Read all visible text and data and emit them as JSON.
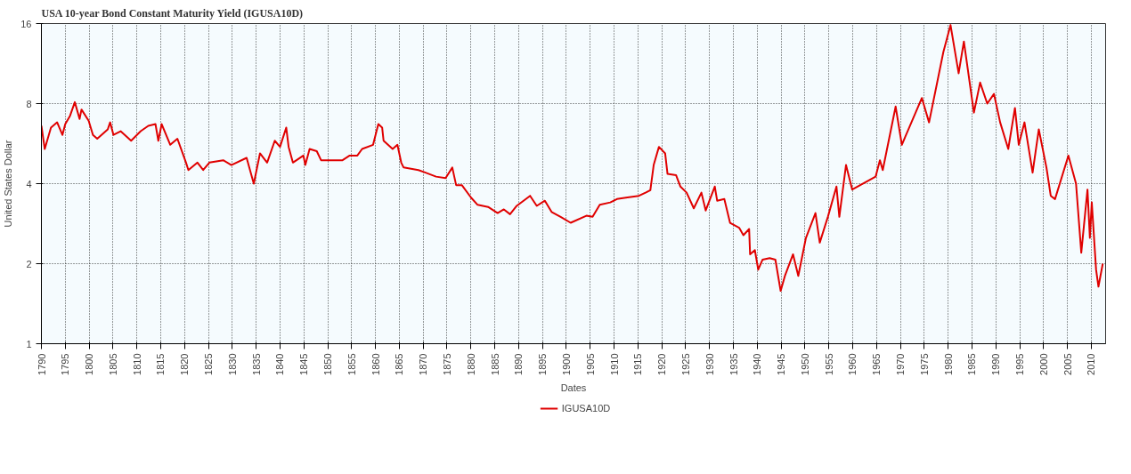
{
  "chart_data": {
    "type": "line",
    "title": "USA 10-year Bond Constant Maturity Yield (IGUSA10D)",
    "xlabel": "Dates",
    "ylabel": "United States Dollar",
    "log": "y",
    "grid": true,
    "legend": "bottom",
    "xlim": [
      1790,
      2013
    ],
    "xticks": [
      1790,
      1795,
      1800,
      1805,
      1810,
      1815,
      1820,
      1825,
      1830,
      1835,
      1840,
      1845,
      1850,
      1855,
      1860,
      1865,
      1870,
      1875,
      1880,
      1885,
      1890,
      1895,
      1900,
      1905,
      1910,
      1915,
      1920,
      1925,
      1930,
      1935,
      1940,
      1945,
      1950,
      1955,
      1960,
      1965,
      1970,
      1975,
      1980,
      1985,
      1990,
      1995,
      2000,
      2005,
      2010
    ],
    "ylim": [
      1,
      16
    ],
    "yticks": [
      1,
      2,
      4,
      8,
      16
    ],
    "series": [
      {
        "name": "IGUSA10D",
        "color": "#e00000",
        "x": [
          1790,
          1790.7,
          1792,
          1793.3,
          1794.4,
          1795,
          1796,
          1797,
          1798,
          1798.4,
          1799.9,
          1800.8,
          1801.7,
          1803.9,
          1804.4,
          1805.1,
          1806.6,
          1808.8,
          1810.8,
          1812.4,
          1813.9,
          1814.5,
          1815.2,
          1817,
          1818.5,
          1820.3,
          1820.8,
          1822.7,
          1823.9,
          1825.2,
          1828.1,
          1829.8,
          1833,
          1834.5,
          1835.8,
          1837.3,
          1838.9,
          1840,
          1841.3,
          1841.8,
          1842.7,
          1844.9,
          1845.3,
          1846.2,
          1847.7,
          1848.6,
          1853.1,
          1854.6,
          1856.2,
          1857.2,
          1859.5,
          1860.6,
          1861.4,
          1861.7,
          1863.6,
          1864.6,
          1865.4,
          1865.9,
          1869,
          1870.5,
          1872.7,
          1874.7,
          1876.1,
          1876.9,
          1878.1,
          1880,
          1881.4,
          1883.6,
          1885.6,
          1886.9,
          1888.2,
          1889.6,
          1892.4,
          1893.8,
          1895.5,
          1896.9,
          1898.8,
          1900.9,
          1904.2,
          1905.5,
          1907,
          1909.2,
          1910.6,
          1912.8,
          1915.2,
          1916.6,
          1917.6,
          1918.3,
          1919.4,
          1920.7,
          1921.2,
          1923,
          1923.9,
          1925.2,
          1926.7,
          1928.3,
          1929.2,
          1931.1,
          1931.6,
          1933.1,
          1934.3,
          1936.2,
          1937.1,
          1938.3,
          1938.5,
          1939.5,
          1940.2,
          1941.1,
          1942.6,
          1943.8,
          1944.9,
          1945.8,
          1947.5,
          1948.6,
          1950.2,
          1952.2,
          1953.1,
          1954.8,
          1956.6,
          1957.2,
          1958.6,
          1959.9,
          1964.8,
          1965.7,
          1966.3,
          1969,
          1970.3,
          1974.5,
          1976,
          1979,
          1980.5,
          1982.2,
          1983.3,
          1985.4,
          1986.7,
          1988.2,
          1989.6,
          1990.9,
          1992.6,
          1994,
          1994.8,
          1996,
          1997.7,
          1999,
          2000.6,
          2001.5,
          2002.4,
          2005.2,
          2006.8,
          2007.9,
          2009.2,
          2009.7,
          2010.1,
          2011,
          2011.5,
          2012.4
        ],
        "values": [
          6.6,
          5.4,
          6.5,
          6.8,
          6.1,
          6.7,
          7.2,
          8.1,
          7.0,
          7.6,
          6.9,
          6.1,
          5.9,
          6.4,
          6.8,
          6.1,
          6.3,
          5.8,
          6.3,
          6.6,
          6.7,
          5.8,
          6.7,
          5.6,
          5.9,
          4.8,
          4.5,
          4.8,
          4.5,
          4.8,
          4.9,
          4.7,
          5.0,
          4.0,
          5.2,
          4.8,
          5.8,
          5.5,
          6.5,
          5.5,
          4.8,
          5.1,
          4.7,
          5.4,
          5.3,
          4.9,
          4.9,
          5.1,
          5.1,
          5.4,
          5.6,
          6.7,
          6.5,
          5.8,
          5.4,
          5.6,
          4.8,
          4.6,
          4.5,
          4.4,
          4.25,
          4.2,
          4.6,
          3.95,
          3.95,
          3.55,
          3.33,
          3.27,
          3.1,
          3.2,
          3.07,
          3.3,
          3.6,
          3.3,
          3.45,
          3.13,
          3.0,
          2.85,
          3.03,
          3.0,
          3.33,
          3.4,
          3.5,
          3.55,
          3.6,
          3.7,
          3.78,
          4.7,
          5.5,
          5.2,
          4.35,
          4.3,
          3.9,
          3.7,
          3.23,
          3.7,
          3.17,
          3.9,
          3.45,
          3.5,
          2.85,
          2.73,
          2.56,
          2.7,
          2.17,
          2.25,
          1.9,
          2.07,
          2.1,
          2.07,
          1.58,
          1.8,
          2.17,
          1.8,
          2.5,
          3.1,
          2.4,
          3.0,
          3.9,
          3.0,
          4.7,
          3.8,
          4.25,
          4.9,
          4.5,
          7.8,
          5.6,
          8.4,
          6.8,
          12.5,
          15.8,
          10.4,
          13.7,
          7.4,
          9.6,
          8.0,
          8.7,
          6.8,
          5.4,
          7.7,
          5.6,
          6.8,
          4.4,
          6.4,
          4.6,
          3.6,
          3.5,
          5.1,
          4.0,
          2.2,
          3.8,
          2.5,
          3.4,
          1.9,
          1.64,
          2.0
        ]
      }
    ]
  }
}
